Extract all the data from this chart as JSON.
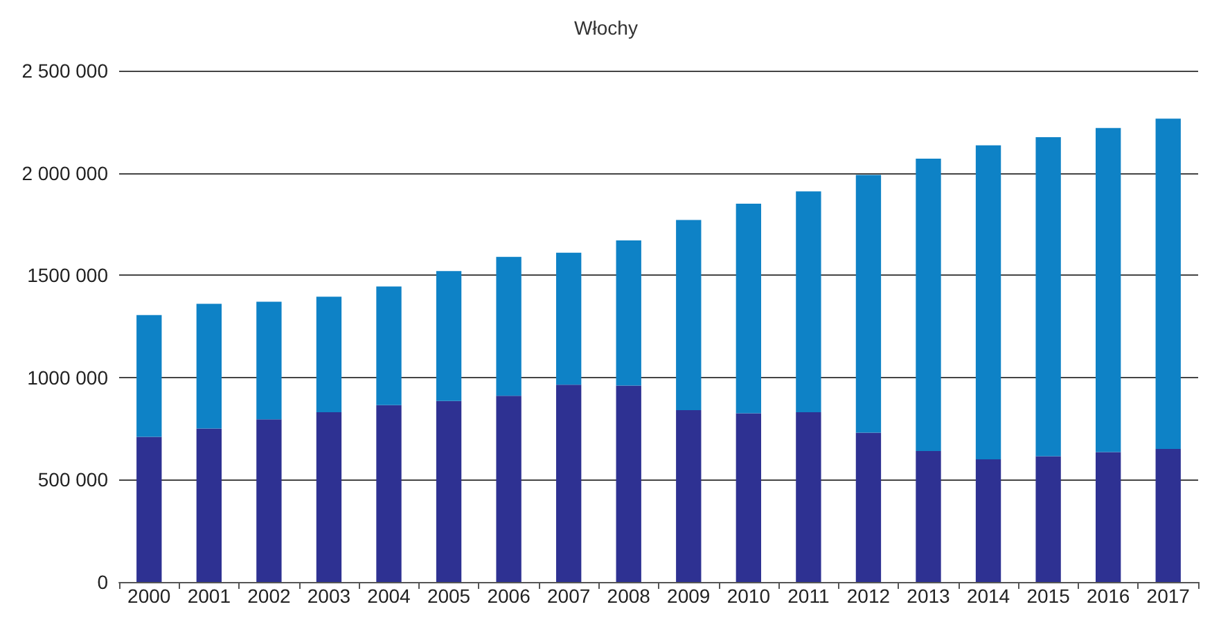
{
  "chart_data": {
    "type": "bar",
    "title": "Włochy",
    "stacked": true,
    "grid": "y",
    "categories": [
      "2000",
      "2001",
      "2002",
      "2003",
      "2004",
      "2005",
      "2006",
      "2007",
      "2008",
      "2009",
      "2010",
      "2011",
      "2012",
      "2013",
      "2014",
      "2015",
      "2016",
      "2017"
    ],
    "series": [
      {
        "color": "#2e3192",
        "values": [
          710000,
          750000,
          795000,
          830000,
          865000,
          885000,
          910000,
          965000,
          960000,
          840000,
          825000,
          830000,
          730000,
          640000,
          600000,
          615000,
          635000,
          650000
        ]
      },
      {
        "color": "#0e82c6",
        "values": [
          595000,
          610000,
          575000,
          565000,
          580000,
          635000,
          680000,
          645000,
          710000,
          930000,
          1025000,
          1080000,
          1260000,
          1430000,
          1535000,
          1560000,
          1585000,
          1615000
        ]
      }
    ],
    "ylim": [
      0,
      2500000
    ],
    "yticks": [
      0,
      {
        "value": 500000,
        "label": "500 000"
      },
      {
        "value": 1000000,
        "label": "1000 000"
      },
      {
        "value": 1500000,
        "label": "1500 000"
      },
      {
        "value": 2000000,
        "label": "2 000 000"
      },
      {
        "value": 2500000,
        "label": "2 500 000"
      }
    ]
  }
}
